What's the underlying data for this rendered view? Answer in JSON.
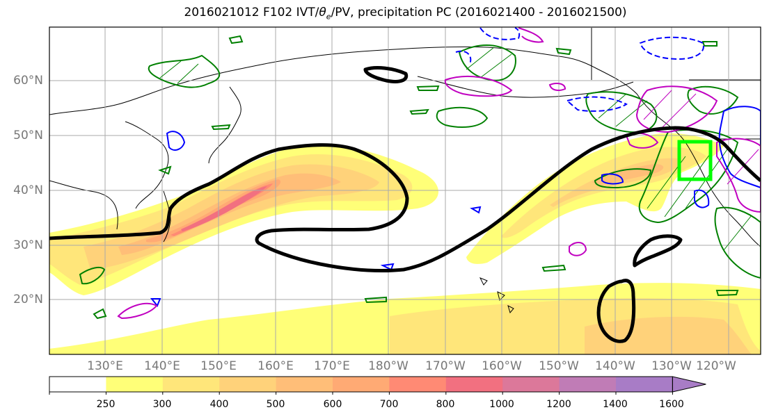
{
  "title": "2016021012 F102 IVT/θe/PV, precipitation PC (2016021400 - 2016021500)",
  "title_parts": {
    "prefix": "2016021012 F102 IVT/",
    "theta": "θ",
    "sub": "e",
    "suffix": "/PV, precipitation PC (2016021400 - 2016021500)"
  },
  "map": {
    "lon_range_east": [
      120,
      250
    ],
    "lat_range": [
      10,
      70
    ],
    "lat_ticks": [
      "60°N",
      "50°N",
      "40°N",
      "30°N",
      "20°N"
    ],
    "lon_ticks": [
      "130°E",
      "140°E",
      "150°E",
      "160°E",
      "170°E",
      "180°W",
      "170°W",
      "160°W",
      "150°W",
      "140°W",
      "130°W",
      "120°W"
    ],
    "grid": true,
    "box_color": "#00ff00"
  },
  "colorbar": {
    "levels": [
      "250",
      "300",
      "400",
      "500",
      "600",
      "700",
      "800",
      "1000",
      "1200",
      "1400",
      "1600"
    ],
    "colors": [
      "#ffffff",
      "#ffff78",
      "#ffe67a",
      "#ffd27a",
      "#ffbe78",
      "#ffaa74",
      "#ff8a74",
      "#f27080",
      "#dc789a",
      "#c07cb6",
      "#a87cc6"
    ],
    "extend": "max"
  },
  "contour_colors": {
    "ivt_threshold": "#000000",
    "precip_pos": "#008000",
    "precip_neg": "#0000ff",
    "pv": "#c000c0"
  }
}
